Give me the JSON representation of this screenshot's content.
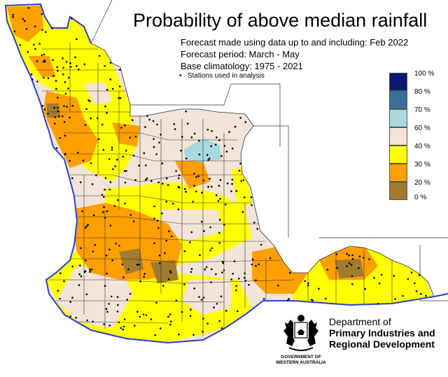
{
  "title": "Probability of above median rainfall",
  "forecast_made": "Forecast made using data up to and including: Feb 2022",
  "forecast_period": "Forecast period: March - May",
  "climatology": "Base climatology: 1975 - 2021",
  "stations_note": "Stations used in analysis",
  "legend": [
    {
      "label": "100 %",
      "color": "#0a1a6e"
    },
    {
      "label": "80 %",
      "color": "#3a6e98"
    },
    {
      "label": "70 %",
      "color": "#a9d9de"
    },
    {
      "label": "60 %",
      "color": "#f2e4d8"
    },
    {
      "label": "40 %",
      "color": "#ffff00"
    },
    {
      "label": "30 %",
      "color": "#ff9f00"
    },
    {
      "label": "20 %",
      "color": "#a27b2f"
    },
    {
      "label": "0 %",
      "color": ""
    }
  ],
  "department": {
    "line1": "Department of",
    "line2": "Primary Industries and",
    "line3": "Regional Development"
  },
  "government": {
    "line1": "GOVERNMENT OF",
    "line2": "WESTERN AUSTRALIA"
  },
  "colors": {
    "coastline": "#2a3fd0",
    "boundaries": "#333333",
    "station": "#000000",
    "land_base": "#f2e4d8",
    "yellow": "#ffff00",
    "orange": "#ff9f00",
    "brown": "#a27b2f",
    "light_blue": "#a9d9de"
  }
}
